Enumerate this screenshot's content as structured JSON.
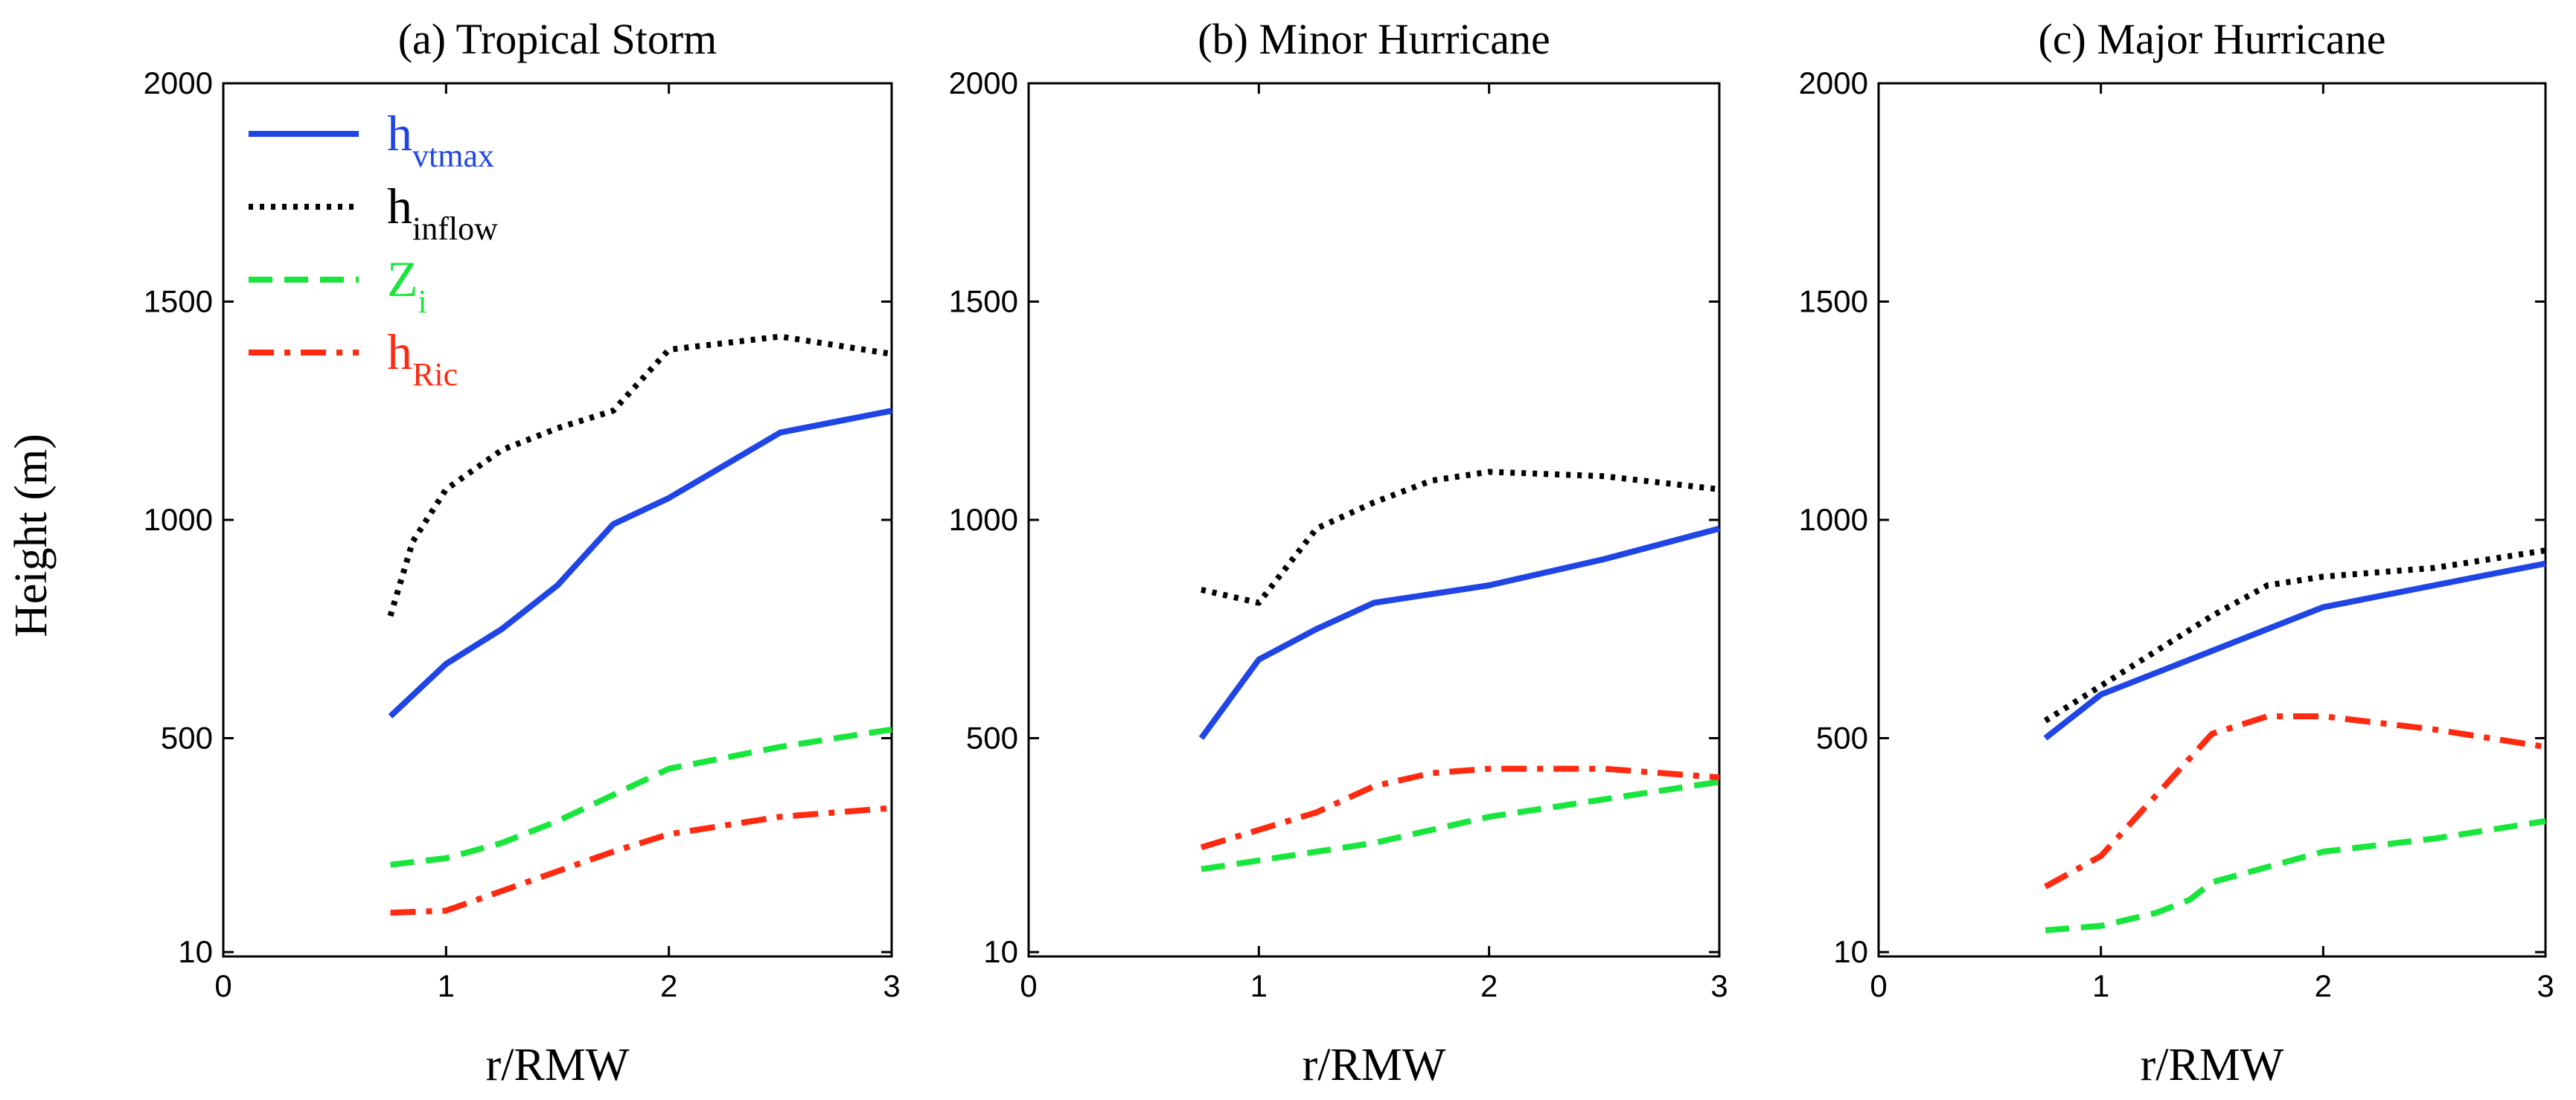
{
  "figure": {
    "ylabel": "Height (m)",
    "xlabel": "r/RMW"
  },
  "legend": [
    {
      "series": "h_vtmax",
      "base": "h",
      "sub": "vtmax",
      "color": "#1f45e6",
      "dash": "solid"
    },
    {
      "series": "h_inflow",
      "base": "h",
      "sub": "inflow",
      "color": "#000000",
      "dash": "dotted"
    },
    {
      "series": "Z_i",
      "base": "Z",
      "sub": "i",
      "color": "#19e63c",
      "dash": "dashed"
    },
    {
      "series": "h_Ric",
      "base": "h",
      "sub": "Ric",
      "color": "#ff2a10",
      "dash": "dashdot"
    }
  ],
  "chart_data": [
    {
      "type": "line",
      "title": "(a) Tropical Storm",
      "xlabel": "r/RMW",
      "ylabel": "Height (m)",
      "xlim": [
        0,
        3
      ],
      "ylim": [
        0,
        2000
      ],
      "xticks": [
        0,
        1,
        2,
        3
      ],
      "yticks": [
        10,
        500,
        1000,
        1500,
        2000
      ],
      "series": [
        {
          "name": "h_vtmax",
          "x": [
            0.75,
            1.0,
            1.25,
            1.5,
            1.75,
            2.0,
            2.5,
            3.0
          ],
          "y": [
            550,
            670,
            750,
            850,
            990,
            1050,
            1200,
            1250
          ]
        },
        {
          "name": "h_inflow",
          "x": [
            0.75,
            0.85,
            1.0,
            1.25,
            1.5,
            1.75,
            2.0,
            2.5,
            3.0
          ],
          "y": [
            780,
            950,
            1070,
            1160,
            1210,
            1250,
            1390,
            1420,
            1380
          ]
        },
        {
          "name": "Z_i",
          "x": [
            0.75,
            1.0,
            1.25,
            1.5,
            1.75,
            2.0,
            2.5,
            3.0
          ],
          "y": [
            210,
            225,
            260,
            310,
            370,
            430,
            480,
            520
          ]
        },
        {
          "name": "h_Ric",
          "x": [
            0.75,
            1.0,
            1.25,
            1.5,
            1.75,
            2.0,
            2.5,
            3.0
          ],
          "y": [
            100,
            105,
            150,
            195,
            240,
            280,
            320,
            340
          ]
        }
      ]
    },
    {
      "type": "line",
      "title": "(b) Minor Hurricane",
      "xlabel": "r/RMW",
      "ylabel": "Height (m)",
      "xlim": [
        0,
        3
      ],
      "ylim": [
        0,
        2000
      ],
      "xticks": [
        0,
        1,
        2,
        3
      ],
      "yticks": [
        10,
        500,
        1000,
        1500,
        2000
      ],
      "series": [
        {
          "name": "h_vtmax",
          "x": [
            0.75,
            1.0,
            1.25,
            1.5,
            2.0,
            2.5,
            3.0
          ],
          "y": [
            500,
            680,
            750,
            810,
            850,
            910,
            980
          ]
        },
        {
          "name": "h_inflow",
          "x": [
            0.75,
            1.0,
            1.25,
            1.5,
            1.75,
            2.0,
            2.5,
            3.0
          ],
          "y": [
            840,
            810,
            980,
            1040,
            1090,
            1110,
            1100,
            1070
          ]
        },
        {
          "name": "Z_i",
          "x": [
            0.75,
            1.0,
            1.5,
            2.0,
            2.5,
            3.0
          ],
          "y": [
            200,
            220,
            260,
            320,
            360,
            400
          ]
        },
        {
          "name": "h_Ric",
          "x": [
            0.75,
            1.0,
            1.25,
            1.5,
            1.75,
            2.0,
            2.5,
            3.0
          ],
          "y": [
            250,
            290,
            330,
            390,
            420,
            430,
            430,
            410
          ]
        }
      ]
    },
    {
      "type": "line",
      "title": "(c) Major Hurricane",
      "xlabel": "r/RMW",
      "ylabel": "Height (m)",
      "xlim": [
        0,
        3
      ],
      "ylim": [
        0,
        2000
      ],
      "xticks": [
        0,
        1,
        2,
        3
      ],
      "yticks": [
        10,
        500,
        1000,
        1500,
        2000
      ],
      "series": [
        {
          "name": "h_vtmax",
          "x": [
            0.75,
            1.0,
            1.5,
            2.0,
            2.5,
            3.0
          ],
          "y": [
            500,
            600,
            700,
            800,
            850,
            900
          ]
        },
        {
          "name": "h_inflow",
          "x": [
            0.75,
            1.0,
            1.25,
            1.5,
            1.75,
            2.0,
            2.5,
            3.0
          ],
          "y": [
            540,
            620,
            700,
            780,
            850,
            870,
            890,
            930
          ]
        },
        {
          "name": "Z_i",
          "x": [
            0.75,
            1.0,
            1.25,
            1.4,
            1.5,
            2.0,
            2.5,
            3.0
          ],
          "y": [
            60,
            70,
            100,
            130,
            170,
            240,
            270,
            310
          ]
        },
        {
          "name": "h_Ric",
          "x": [
            0.75,
            1.0,
            1.25,
            1.5,
            1.75,
            2.0,
            2.5,
            3.0
          ],
          "y": [
            160,
            230,
            370,
            510,
            550,
            550,
            520,
            480
          ]
        }
      ]
    }
  ]
}
